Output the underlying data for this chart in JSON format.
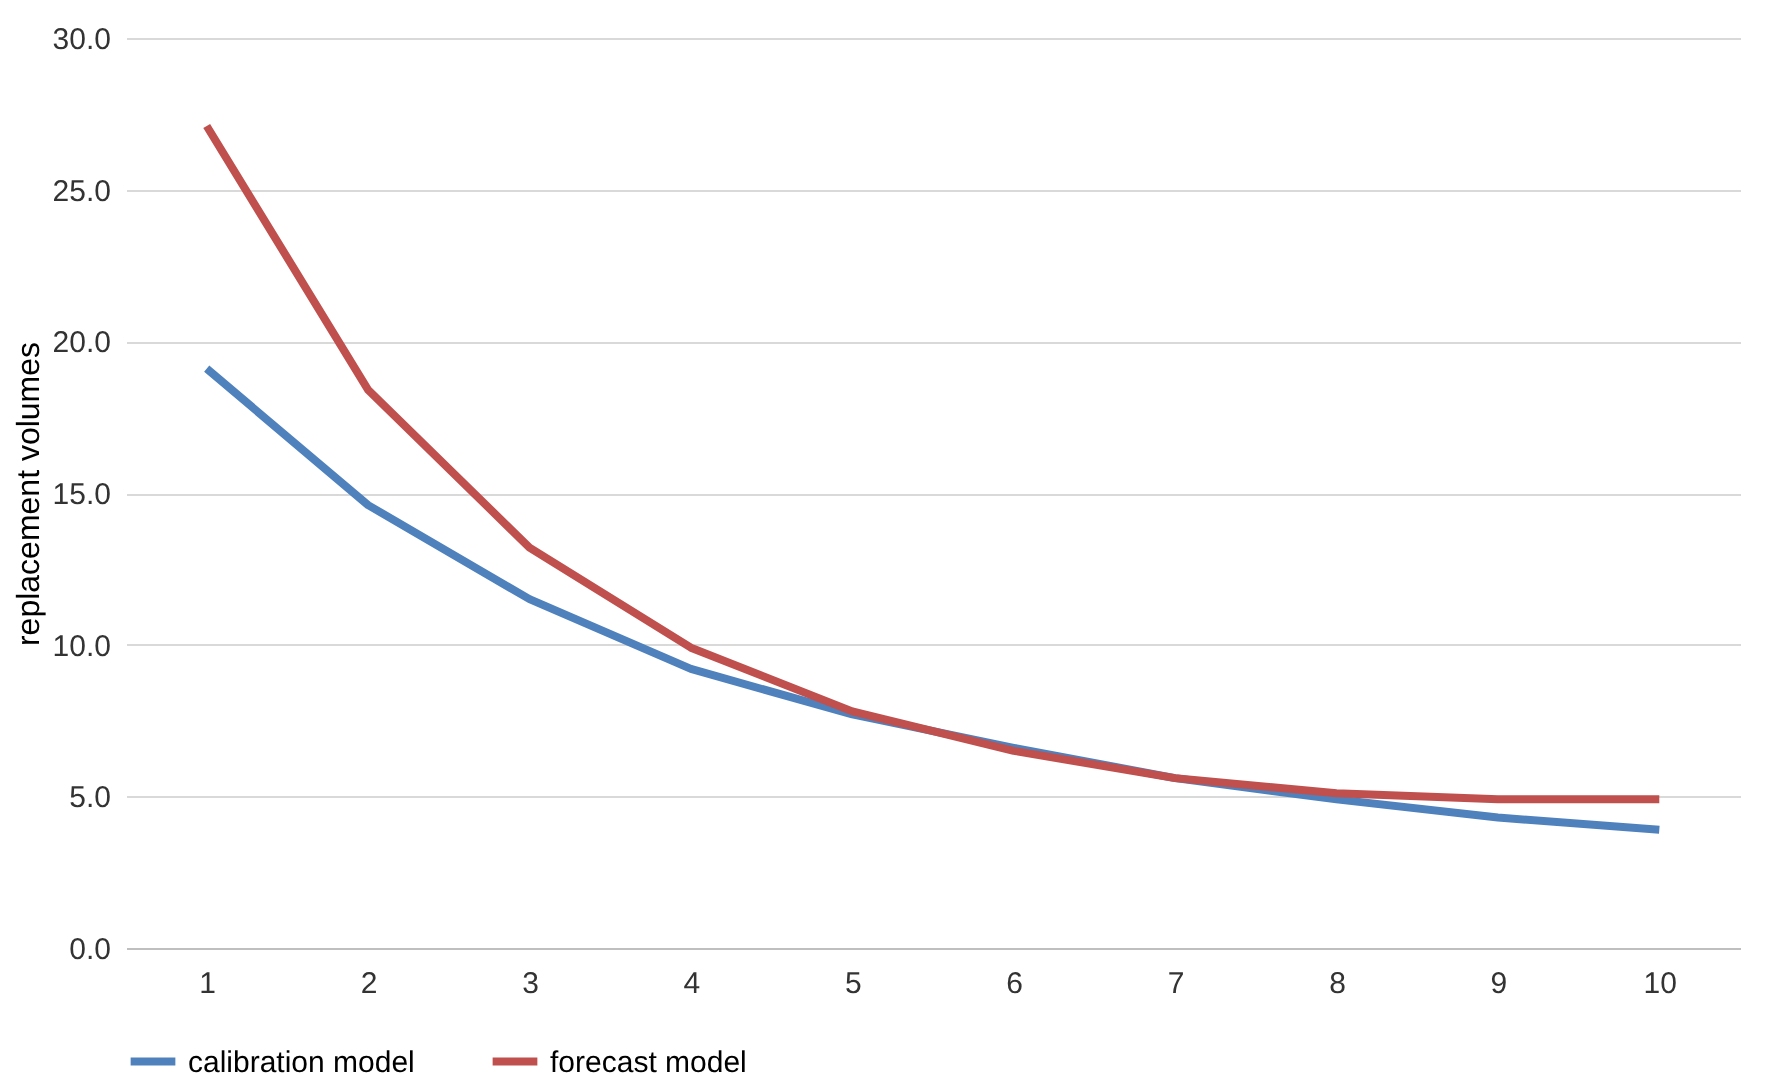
{
  "chart_data": {
    "type": "line",
    "ylabel": "replacement volumes",
    "categories": [
      "1",
      "2",
      "3",
      "4",
      "5",
      "6",
      "7",
      "8",
      "9",
      "10"
    ],
    "series": [
      {
        "name": "calibration model",
        "color": "#4f81bd",
        "values": [
          19.1,
          14.6,
          11.5,
          9.2,
          7.7,
          6.6,
          5.6,
          4.9,
          4.3,
          3.9
        ]
      },
      {
        "name": "forecast model",
        "color": "#c0504d",
        "values": [
          27.1,
          18.4,
          13.2,
          9.9,
          7.8,
          6.5,
          5.6,
          5.1,
          4.9,
          4.9
        ]
      }
    ],
    "ylim": [
      0,
      30
    ],
    "yticks": [
      {
        "value": 0,
        "label": "0.0"
      },
      {
        "value": 5,
        "label": "5.0"
      },
      {
        "value": 10,
        "label": "10.0"
      },
      {
        "value": 15,
        "label": "15.0"
      },
      {
        "value": 20,
        "label": "20.0"
      },
      {
        "value": 25,
        "label": "25.0"
      },
      {
        "value": 30,
        "label": "30.0"
      }
    ],
    "grid": "y",
    "legend": "bottom",
    "marker": "none",
    "line_style": "solid"
  }
}
